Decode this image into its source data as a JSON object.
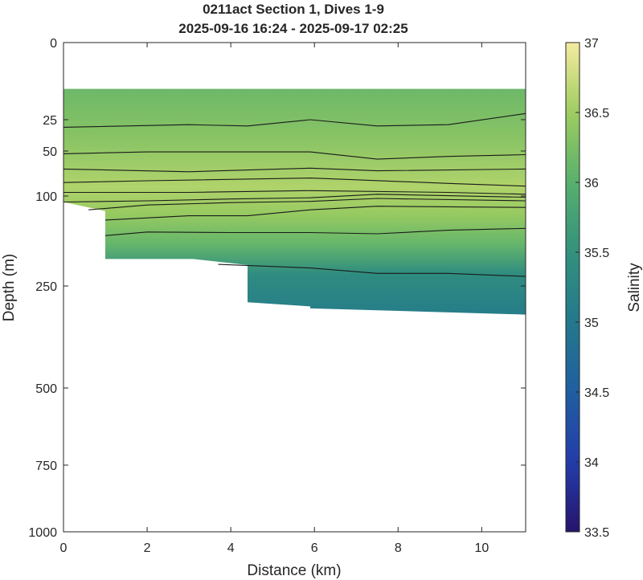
{
  "chart_data": {
    "type": "heatmap",
    "title": "0211act Section 1, Dives 1-9",
    "subtitle": "2025-09-16 16:24 - 2025-09-17 02:25",
    "xlabel": "Distance (km)",
    "ylabel": "Depth (m)",
    "xlim": [
      0,
      11.05
    ],
    "ylim": [
      1000,
      0
    ],
    "y_scale": "compressed (non-linear)",
    "xticks": [
      "0",
      "2",
      "4",
      "6",
      "8",
      "10"
    ],
    "yticks": [
      "0",
      "25",
      "50",
      "100",
      "250",
      "500",
      "750",
      "1000"
    ],
    "colorbar": {
      "label": "Salinity",
      "range": [
        33.5,
        37
      ],
      "ticks": [
        "37",
        "36.5",
        "36",
        "35.5",
        "35",
        "34.5",
        "34",
        "33.5"
      ]
    },
    "section": {
      "top_depth": 15,
      "bottom_profile": [
        {
          "x": 0,
          "y": 110
        },
        {
          "x": 1,
          "y": 125
        },
        {
          "x": 1,
          "y": 205
        },
        {
          "x": 3.1,
          "y": 205
        },
        {
          "x": 4.4,
          "y": 215
        },
        {
          "x": 4.4,
          "y": 290
        },
        {
          "x": 5.9,
          "y": 300
        },
        {
          "x": 5.9,
          "y": 305
        },
        {
          "x": 11.05,
          "y": 320
        }
      ],
      "salinity_by_depth": [
        {
          "depth": 15,
          "value": 36.15
        },
        {
          "depth": 40,
          "value": 36.35
        },
        {
          "depth": 90,
          "value": 36.6
        },
        {
          "depth": 130,
          "value": 36.45
        },
        {
          "depth": 180,
          "value": 36.1
        },
        {
          "depth": 230,
          "value": 35.4
        },
        {
          "depth": 320,
          "value": 35.1
        }
      ]
    },
    "contours": [
      [
        [
          0,
          31
        ],
        [
          3,
          29
        ],
        [
          4.4,
          30
        ],
        [
          5.9,
          25
        ],
        [
          7.5,
          30
        ],
        [
          9.2,
          29
        ],
        [
          11.05,
          23
        ]
      ],
      [
        [
          0,
          53
        ],
        [
          2,
          51
        ],
        [
          4,
          51
        ],
        [
          5.9,
          51
        ],
        [
          7.5,
          59
        ],
        [
          9.2,
          56
        ],
        [
          11.05,
          54
        ]
      ],
      [
        [
          0,
          70
        ],
        [
          3,
          73
        ],
        [
          5.9,
          69
        ],
        [
          7.5,
          72
        ],
        [
          11.05,
          70
        ]
      ],
      [
        [
          0,
          85
        ],
        [
          2,
          83
        ],
        [
          5.9,
          80
        ],
        [
          9.2,
          86
        ],
        [
          11.05,
          89
        ]
      ],
      [
        [
          0,
          96
        ],
        [
          3,
          96
        ],
        [
          5.9,
          94
        ],
        [
          9.2,
          96
        ],
        [
          11.05,
          98
        ]
      ],
      [
        [
          0,
          110
        ],
        [
          2,
          108
        ],
        [
          4,
          105
        ],
        [
          5.9,
          103
        ],
        [
          7.5,
          98
        ],
        [
          11.05,
          102
        ]
      ],
      [
        [
          0.6,
          123
        ],
        [
          2,
          115
        ],
        [
          4,
          111
        ],
        [
          5.9,
          109
        ],
        [
          7.5,
          104
        ],
        [
          11.05,
          108
        ]
      ],
      [
        [
          1,
          140
        ],
        [
          3,
          133
        ],
        [
          4.4,
          133
        ],
        [
          5.9,
          123
        ],
        [
          7.5,
          117
        ],
        [
          11.05,
          119
        ]
      ],
      [
        [
          1,
          166
        ],
        [
          2,
          160
        ],
        [
          4,
          161
        ],
        [
          5.9,
          161
        ],
        [
          7.5,
          163
        ],
        [
          9.2,
          157
        ],
        [
          11.05,
          154
        ]
      ],
      [
        [
          3.7,
          214
        ],
        [
          5.9,
          220
        ],
        [
          7.5,
          229
        ],
        [
          9.2,
          229
        ],
        [
          11.05,
          234
        ]
      ]
    ]
  }
}
